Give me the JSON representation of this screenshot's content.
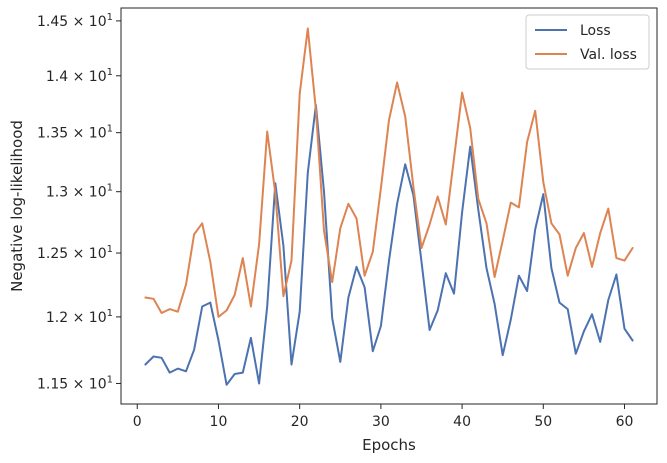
{
  "chart_data": {
    "type": "line",
    "xlabel": "Epochs",
    "ylabel": "Negative log-likelihood",
    "y_scale": "log",
    "xlim": [
      -2.0,
      64.0
    ],
    "ylim": [
      11.35,
      14.62
    ],
    "x_ticks": [
      0,
      10,
      20,
      30,
      40,
      50,
      60
    ],
    "y_ticks": [
      {
        "value": 11.5,
        "mantissa": "1.15",
        "base": "10",
        "exp": "1"
      },
      {
        "value": 12.0,
        "mantissa": "1.2",
        "base": "10",
        "exp": "1"
      },
      {
        "value": 12.5,
        "mantissa": "1.25",
        "base": "10",
        "exp": "1"
      },
      {
        "value": 13.0,
        "mantissa": "1.3",
        "base": "10",
        "exp": "1"
      },
      {
        "value": 13.5,
        "mantissa": "1.35",
        "base": "10",
        "exp": "1"
      },
      {
        "value": 14.0,
        "mantissa": "1.4",
        "base": "10",
        "exp": "1"
      },
      {
        "value": 14.5,
        "mantissa": "1.45",
        "base": "10",
        "exp": "1"
      }
    ],
    "grid": false,
    "legend_position": "top-right",
    "x": [
      1,
      2,
      3,
      4,
      5,
      6,
      7,
      8,
      9,
      10,
      11,
      12,
      13,
      14,
      15,
      16,
      17,
      18,
      19,
      20,
      21,
      22,
      23,
      24,
      25,
      26,
      27,
      28,
      29,
      30,
      31,
      32,
      33,
      34,
      35,
      36,
      37,
      38,
      39,
      40,
      41,
      42,
      43,
      44,
      45,
      46,
      47,
      48,
      49,
      50,
      51,
      52,
      53,
      54,
      55,
      56,
      57,
      58,
      59,
      60,
      61
    ],
    "series": [
      {
        "name": "Loss",
        "color": "#4c72b0",
        "values": [
          11.64,
          11.7,
          11.69,
          11.58,
          11.61,
          11.59,
          11.75,
          12.08,
          12.11,
          11.82,
          11.49,
          11.57,
          11.58,
          11.84,
          11.5,
          12.08,
          13.07,
          12.56,
          11.64,
          12.04,
          13.16,
          13.74,
          13.0,
          11.99,
          11.66,
          12.15,
          12.39,
          12.23,
          11.74,
          11.93,
          12.44,
          12.9,
          13.23,
          12.97,
          12.43,
          11.9,
          12.05,
          12.34,
          12.18,
          12.83,
          13.38,
          12.85,
          12.38,
          12.1,
          11.71,
          11.98,
          12.32,
          12.2,
          12.69,
          12.98,
          12.38,
          12.11,
          12.06,
          11.72,
          11.89,
          12.02,
          11.81,
          12.13,
          12.33,
          11.91,
          11.82
        ]
      },
      {
        "name": "Val. loss",
        "color": "#dd8452",
        "values": [
          12.15,
          12.14,
          12.03,
          12.06,
          12.04,
          12.25,
          12.65,
          12.74,
          12.43,
          12.0,
          12.05,
          12.17,
          12.46,
          12.08,
          12.57,
          13.51,
          12.99,
          12.16,
          12.44,
          13.84,
          14.43,
          13.7,
          12.68,
          12.27,
          12.7,
          12.9,
          12.78,
          12.32,
          12.51,
          13.03,
          13.61,
          13.94,
          13.64,
          13.04,
          12.54,
          12.73,
          12.96,
          12.73,
          13.28,
          13.85,
          13.54,
          12.94,
          12.74,
          12.31,
          12.6,
          12.91,
          12.87,
          13.42,
          13.69,
          13.08,
          12.74,
          12.65,
          12.32,
          12.54,
          12.66,
          12.39,
          12.66,
          12.86,
          12.46,
          12.44,
          12.54
        ]
      }
    ]
  }
}
